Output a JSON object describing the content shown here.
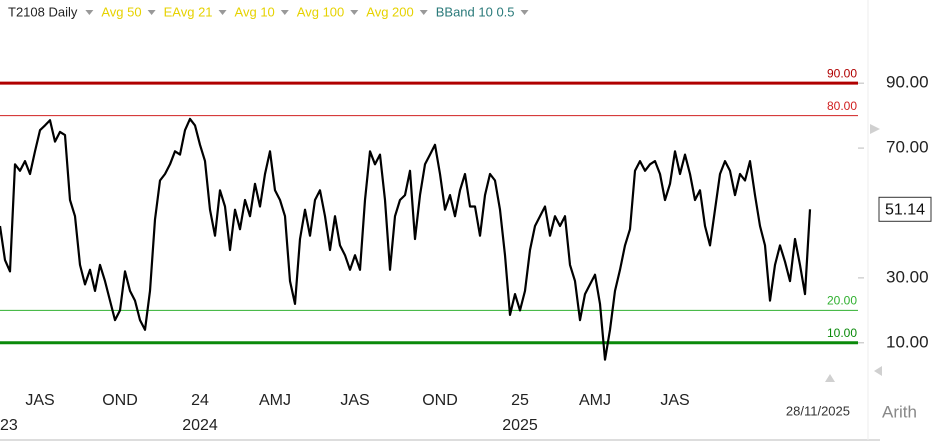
{
  "chart_data": {
    "type": "line",
    "title": "T2108 Daily",
    "indicators": [
      {
        "name": "Avg 50",
        "color": "#e6d200"
      },
      {
        "name": "EAvg 21",
        "color": "#e6d200"
      },
      {
        "name": "Avg 10",
        "color": "#e6d200"
      },
      {
        "name": "Avg 100",
        "color": "#e6d200"
      },
      {
        "name": "Avg 200",
        "color": "#e6d200"
      },
      {
        "name": "BBand 10 0.5",
        "color": "#2a7a7a"
      }
    ],
    "categories": [
      null,
      null,
      null,
      null,
      null,
      null,
      null,
      null,
      "JAS",
      null,
      null,
      null,
      null,
      null,
      null,
      null,
      null,
      null,
      null,
      null,
      null,
      null,
      null,
      null,
      "OND",
      null,
      null,
      null,
      null,
      null,
      null,
      null,
      null,
      null,
      null,
      null,
      null,
      null,
      null,
      null,
      "24",
      null,
      null,
      null,
      null,
      null,
      null,
      null,
      null,
      null,
      null,
      null,
      null,
      null,
      null,
      "AMJ",
      null,
      null,
      null,
      null,
      null,
      null,
      null,
      null,
      null,
      null,
      null,
      null,
      null,
      null,
      null,
      "JAS",
      null,
      null,
      null,
      null,
      null,
      null,
      null,
      null,
      null,
      null,
      null,
      null,
      null,
      null,
      null,
      null,
      "OND",
      null,
      null,
      null,
      null,
      null,
      null,
      null,
      null,
      null,
      null,
      null,
      null,
      null,
      null,
      null,
      "25",
      null,
      null,
      null,
      null,
      null,
      null,
      null,
      null,
      null,
      null,
      null,
      null,
      null,
      null,
      "AMJ",
      null,
      null,
      null,
      null,
      null,
      null,
      null,
      null,
      null,
      null,
      null,
      null,
      null,
      null,
      null,
      "JAS",
      null,
      null,
      null,
      null,
      null,
      null,
      null,
      null,
      null,
      null,
      null,
      null,
      null,
      null,
      null,
      null,
      null,
      null,
      null,
      null,
      null,
      null,
      null,
      null,
      null,
      null,
      null
    ],
    "category_years": [
      "23",
      null,
      null,
      null,
      null,
      null,
      null,
      null,
      null,
      null,
      null,
      null,
      null,
      null,
      null,
      null,
      null,
      null,
      null,
      null,
      null,
      null,
      null,
      null,
      null,
      null,
      null,
      null,
      null,
      null,
      null,
      null,
      null,
      null,
      null,
      null,
      null,
      null,
      null,
      null,
      "2024",
      null,
      null,
      null,
      null,
      null,
      null,
      null,
      null,
      null,
      null,
      null,
      null,
      null,
      null,
      null,
      null,
      null,
      null,
      null,
      null,
      null,
      null,
      null,
      null,
      null,
      null,
      null,
      null,
      null,
      null,
      null,
      null,
      null,
      null,
      null,
      null,
      null,
      null,
      null,
      null,
      null,
      null,
      null,
      null,
      null,
      null,
      null,
      null,
      null,
      null,
      null,
      null,
      null,
      null,
      null,
      null,
      null,
      null,
      null,
      null,
      null,
      null,
      null,
      "2025",
      null,
      null,
      null,
      null,
      null,
      null,
      null,
      null,
      null,
      null,
      null,
      null,
      null,
      null,
      null,
      null,
      null,
      null,
      null,
      null,
      null,
      null,
      null,
      null,
      null,
      null,
      null,
      null,
      null,
      null,
      null,
      null,
      null,
      null,
      null,
      null,
      null,
      null,
      null,
      null,
      null,
      null,
      null,
      null,
      null,
      null,
      null,
      null,
      null,
      null,
      null,
      null,
      null,
      null,
      null,
      null,
      null,
      null
    ],
    "series": [
      {
        "name": "T2108",
        "color": "#000000",
        "values": [
          46,
          35.5,
          32,
          65,
          63,
          66,
          62,
          69,
          75.5,
          77,
          78.6,
          72,
          75,
          74,
          54,
          49,
          34,
          28,
          32.5,
          26,
          34,
          29,
          23,
          17,
          20,
          32,
          26,
          23,
          17,
          14,
          26,
          48,
          60,
          62,
          65,
          69,
          68,
          75.5,
          79,
          77,
          71,
          66,
          51,
          43,
          57,
          52,
          38.6,
          51,
          45,
          54,
          49,
          59,
          52,
          62,
          69,
          57,
          54,
          49,
          29,
          22,
          42,
          51,
          43,
          54,
          57,
          49,
          38.6,
          49,
          40,
          37,
          32.5,
          37,
          32.5,
          54,
          69,
          65,
          68,
          54,
          32.5,
          49,
          54,
          55.5,
          63,
          42,
          55.5,
          65,
          68,
          71,
          62,
          51,
          55.5,
          49,
          57,
          62,
          52,
          52,
          43,
          55.5,
          62,
          60,
          51,
          37,
          18.6,
          25,
          20,
          26,
          38.6,
          46,
          49,
          52,
          43,
          49,
          46,
          49,
          34,
          29,
          17,
          25,
          28,
          31,
          22,
          4.8,
          14,
          26,
          32.5,
          40,
          45,
          63,
          66,
          63,
          65,
          66,
          62,
          54,
          59,
          69,
          62,
          68,
          62,
          54,
          57,
          46,
          40,
          51,
          62,
          66,
          63,
          55.5,
          62,
          60,
          66,
          55.5,
          46,
          40,
          23,
          34,
          40,
          35,
          29,
          42,
          34,
          25,
          51.14
        ]
      }
    ],
    "current_value": 51.14,
    "ylim": [
      -3,
      107
    ],
    "yticks": [
      {
        "value": 10,
        "label": "10.00"
      },
      {
        "value": 30,
        "label": "30.00"
      },
      {
        "value": 70,
        "label": "70.00"
      },
      {
        "value": 90,
        "label": "90.00"
      }
    ],
    "reference_lines": [
      {
        "value": 90,
        "label": "90.00",
        "color": "#b00000",
        "style": "thick"
      },
      {
        "value": 80,
        "label": "80.00",
        "color": "#d02020",
        "style": "thin"
      },
      {
        "value": 20,
        "label": "20.00",
        "color": "#30b030",
        "style": "thin"
      },
      {
        "value": 10,
        "label": "10.00",
        "color": "#0a8a0a",
        "style": "thick"
      }
    ],
    "last_date": "28/11/2025",
    "scale_mode": "Arith"
  }
}
